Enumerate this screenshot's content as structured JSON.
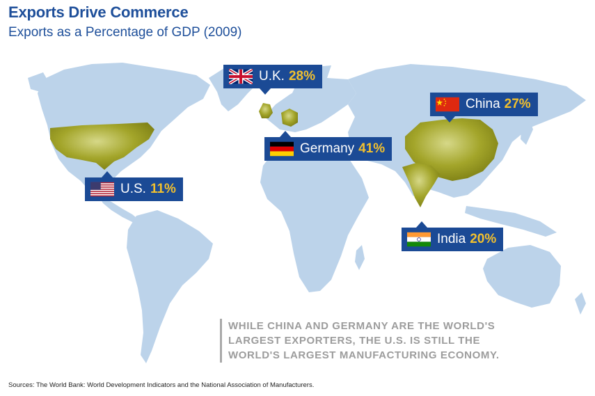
{
  "title": "Exports Drive Commerce",
  "subtitle": "Exports as a Percentage of GDP (2009)",
  "colors": {
    "ocean": "#ffffff",
    "land": "#bcd3ea",
    "highlight": "#9a9c1c",
    "callout_bg": "#1b4a95",
    "value": "#f2c02e"
  },
  "callouts": [
    {
      "country": "U.K.",
      "value": "28%",
      "flag": "uk-flag-icon"
    },
    {
      "country": "China",
      "value": "27%",
      "flag": "china-flag-icon"
    },
    {
      "country": "Germany",
      "value": "41%",
      "flag": "germany-flag-icon"
    },
    {
      "country": "U.S.",
      "value": "11%",
      "flag": "us-flag-icon"
    },
    {
      "country": "India",
      "value": "20%",
      "flag": "india-flag-icon"
    }
  ],
  "note": {
    "lines": [
      "WHILE CHINA AND GERMANY ARE THE WORLD'S",
      "LARGEST EXPORTERS, THE U.S. IS STILL THE",
      "WORLD'S LARGEST MANUFACTURING ECONOMY."
    ]
  },
  "sources": "Sources: The World Bank: World Development Indicators and the National Association of Manufacturers."
}
